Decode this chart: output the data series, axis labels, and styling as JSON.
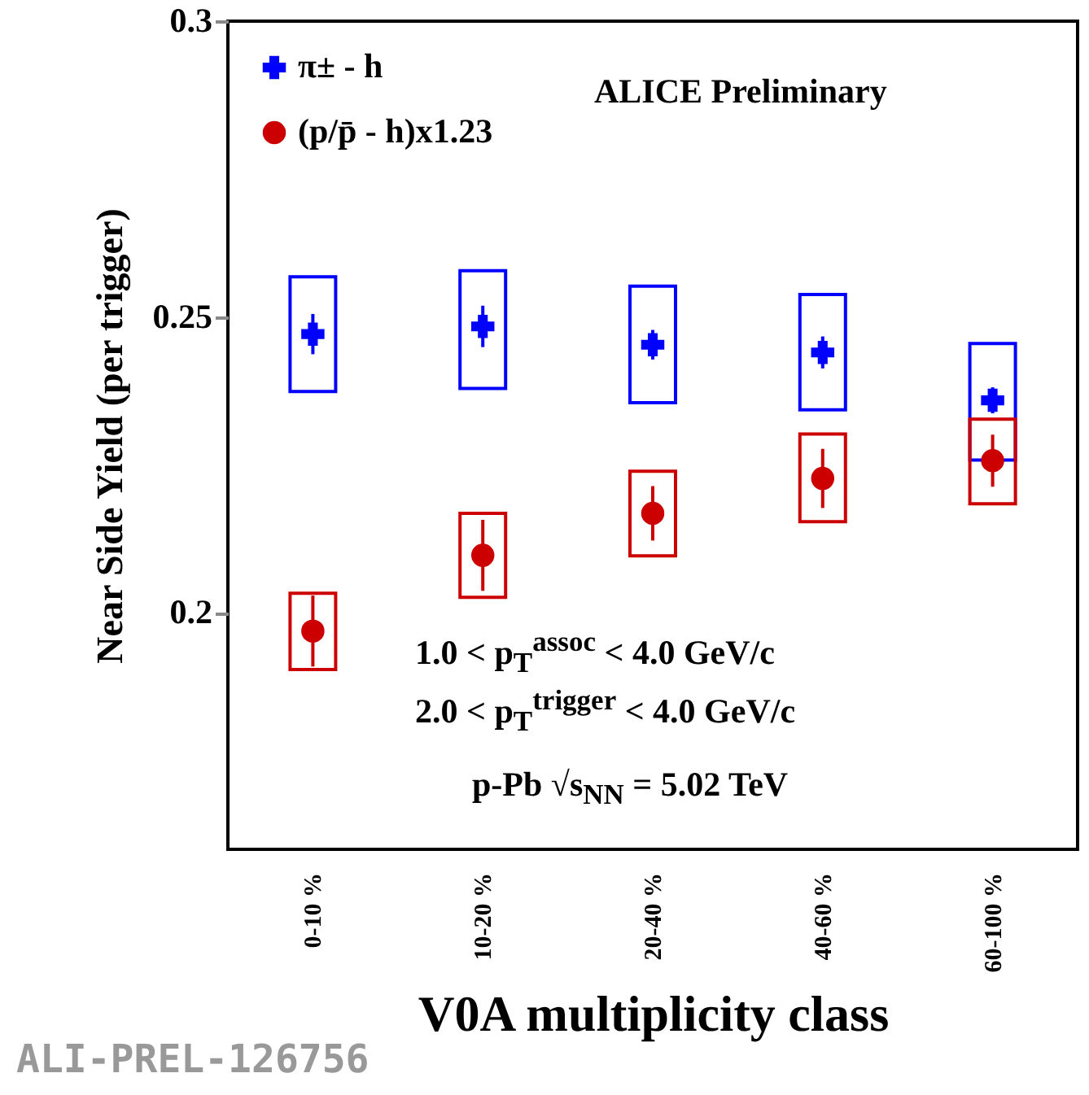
{
  "chart_data": {
    "type": "scatter",
    "xlabel": "V0A multiplicity class",
    "ylabel": "Near Side Yield (per trigger)",
    "categories": [
      "0-10 %",
      "10-20 %",
      "20-40 %",
      "40-60 %",
      "60-100 %"
    ],
    "ylim": [
      0.16,
      0.3
    ],
    "yticks": [
      {
        "value": 0.2,
        "label": "0.2"
      },
      0.25,
      {
        "value": 0.3,
        "label": "0.3"
      }
    ],
    "legend": "top left",
    "series": [
      {
        "type": "bar",
        "color": "#0000ff",
        "base": [
          0.2374,
          0.2379,
          0.2355,
          0.2343,
          0.2258
        ],
        "values": [
          0.0194,
          0.0199,
          0.0197,
          0.0195,
          0.0197
        ]
      },
      {
        "type": "bar",
        "color": "#cc0000",
        "base": [
          0.1904,
          0.2026,
          0.2096,
          0.2154,
          0.2184
        ],
        "values": [
          0.0129,
          0.0142,
          0.0143,
          0.0148,
          0.0143
        ]
      },
      {
        "name": "π± - h",
        "color": "#0000ff",
        "marker": "cross",
        "values": [
          0.2471,
          0.2484,
          0.2453,
          0.244,
          0.2359
        ],
        "errors": [
          0.0034,
          0.0035,
          0.0025,
          0.0027,
          0.0022
        ]
      },
      {
        "name": "(p/p̄ - h)x1.23",
        "color": "#cc0000",
        "marker": "circle",
        "values": [
          0.1969,
          0.2097,
          0.2168,
          0.2227,
          0.2257
        ],
        "errors": [
          0.006,
          0.006,
          0.0046,
          0.005,
          0.0044
        ]
      }
    ],
    "annotations": [
      "ALICE Preliminary",
      "1.0 < p$_{T}$$^{assoc}$ < 4.0 GeV/c",
      "2.0 < p$_{T}$$^{trigger}$ < 4.0 GeV/c",
      "p-Pb √s$_{NN}$ = 5.02 TeV",
      "ALI-PREL-126756"
    ]
  }
}
